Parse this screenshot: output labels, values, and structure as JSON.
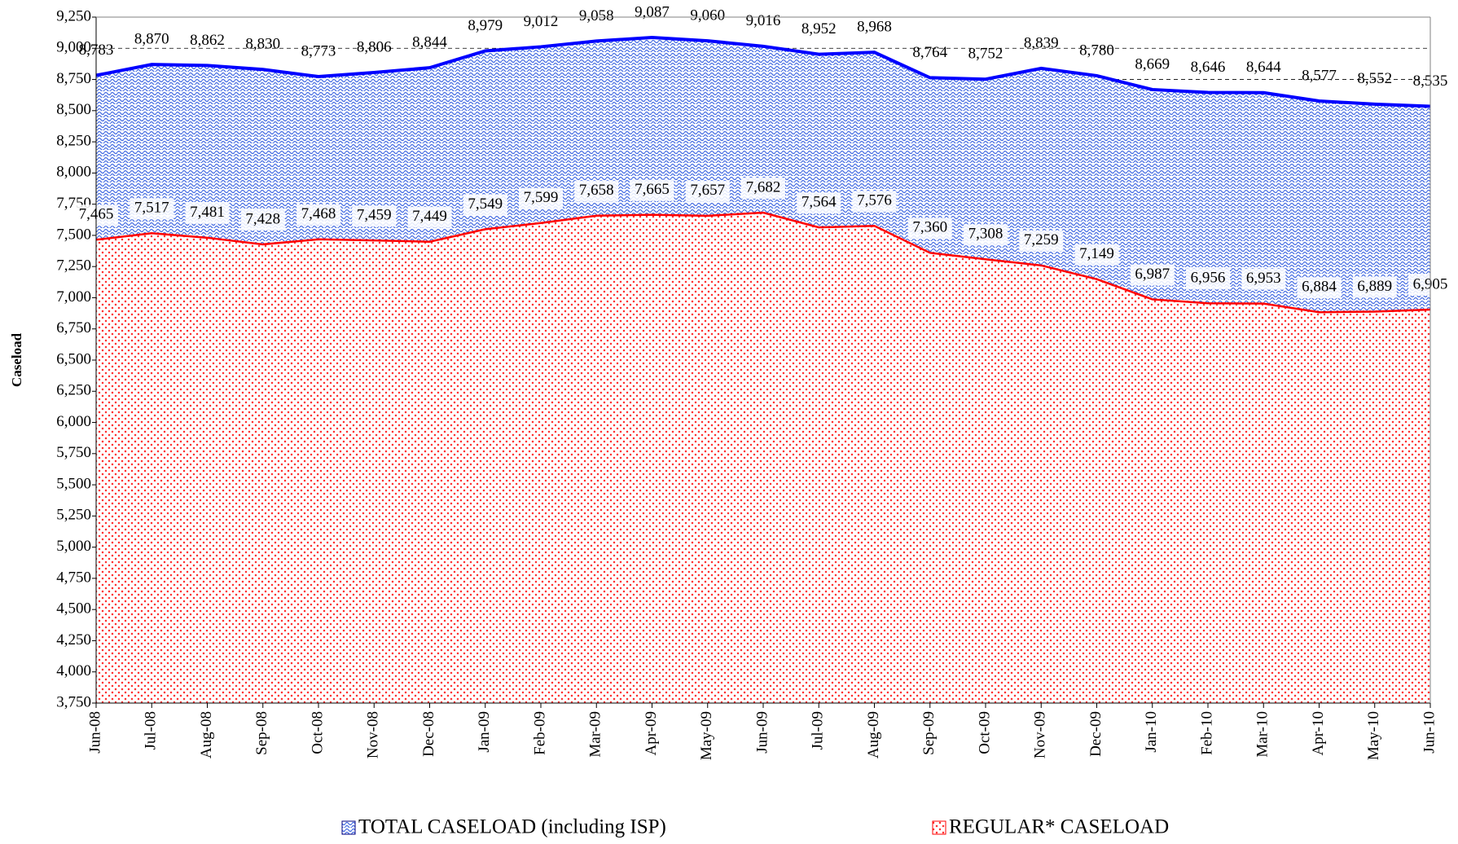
{
  "chart_data": {
    "type": "area",
    "y_label": "Caseload",
    "categories": [
      "Jun-08",
      "Jul-08",
      "Aug-08",
      "Sep-08",
      "Oct-08",
      "Nov-08",
      "Dec-08",
      "Jan-09",
      "Feb-09",
      "Mar-09",
      "Apr-09",
      "May-09",
      "Jun-09",
      "Jul-09",
      "Aug-09",
      "Sep-09",
      "Oct-09",
      "Nov-09",
      "Dec-09",
      "Jan-10",
      "Feb-10",
      "Mar-10",
      "Apr-10",
      "May-10",
      "Jun-10"
    ],
    "series": [
      {
        "name": "TOTAL CASELOAD (including ISP)",
        "color": "#0000ff",
        "values": [
          8783,
          8870,
          8862,
          8830,
          8773,
          8806,
          8844,
          8979,
          9012,
          9058,
          9087,
          9060,
          9016,
          8952,
          8968,
          8764,
          8752,
          8839,
          8780,
          8669,
          8646,
          8644,
          8577,
          8552,
          8535
        ],
        "value_labels": [
          "8,783",
          "8,870",
          "8,862",
          "8,830",
          "8,773",
          "8,806",
          "8,844",
          "8,979",
          "9,012",
          "9,058",
          "9,087",
          "9,060",
          "9,016",
          "8,952",
          "8,968",
          "8,764",
          "8,752",
          "8,839",
          "8,780",
          "8,669",
          "8,646",
          "8,644",
          "8,577",
          "8,552",
          "8,535"
        ]
      },
      {
        "name": "REGULAR* CASELOAD",
        "color": "#ff0000",
        "values": [
          7465,
          7517,
          7481,
          7428,
          7468,
          7459,
          7449,
          7549,
          7599,
          7658,
          7665,
          7657,
          7682,
          7564,
          7576,
          7360,
          7308,
          7259,
          7149,
          6987,
          6956,
          6953,
          6884,
          6889,
          6905
        ],
        "value_labels": [
          "7,465",
          "7,517",
          "7,481",
          "7,428",
          "7,468",
          "7,459",
          "7,449",
          "7,549",
          "7,599",
          "7,658",
          "7,665",
          "7,657",
          "7,682",
          "7,564",
          "7,576",
          "7,360",
          "7,308",
          "7,259",
          "7,149",
          "6,987",
          "6,956",
          "6,953",
          "6,884",
          "6,889",
          "6,905"
        ]
      }
    ],
    "ylim": [
      3750,
      9250
    ],
    "yticks": [
      {
        "value": 3750,
        "label": "3,750"
      },
      {
        "value": 4000,
        "label": "4,000"
      },
      {
        "value": 4250,
        "label": "4,250"
      },
      {
        "value": 4500,
        "label": "4,500"
      },
      {
        "value": 4750,
        "label": "4,750"
      },
      {
        "value": 5000,
        "label": "5,000"
      },
      {
        "value": 5250,
        "label": "5,250"
      },
      {
        "value": 5500,
        "label": "5,500"
      },
      {
        "value": 5750,
        "label": "5,750"
      },
      {
        "value": 6000,
        "label": "6,000"
      },
      {
        "value": 6250,
        "label": "6,250"
      },
      {
        "value": 6500,
        "label": "6,500"
      },
      {
        "value": 6750,
        "label": "6,750"
      },
      {
        "value": 7000,
        "label": "7,000"
      },
      {
        "value": 7250,
        "label": "7,250"
      },
      {
        "value": 7500,
        "label": "7,500"
      },
      {
        "value": 7750,
        "label": "7,750"
      },
      {
        "value": 8000,
        "label": "8,000"
      },
      {
        "value": 8250,
        "label": "8,250"
      },
      {
        "value": 8500,
        "label": "8,500"
      },
      {
        "value": 8750,
        "label": "8,750"
      },
      {
        "value": 9000,
        "label": "9,000"
      },
      {
        "value": 9250,
        "label": "9,250"
      }
    ],
    "grid": true,
    "legend": "bottom"
  }
}
